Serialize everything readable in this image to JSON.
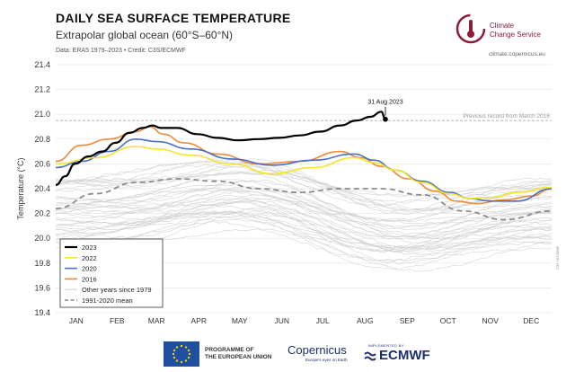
{
  "header": {
    "title": "DAILY SEA SURFACE TEMPERATURE",
    "subtitle": "Extrapolar global ocean (60°S–60°N)",
    "source": "Data: ERA5 1979–2023 • Credit: C3S/ECMWF"
  },
  "brand": {
    "name_line1": "Climate",
    "name_line2": "Change Service",
    "url": "climate.copernicus.eu",
    "color": "#8b1c3a"
  },
  "footer": {
    "eu_line1": "PROGRAMME OF",
    "eu_line2": "THE EUROPEAN UNION",
    "copernicus": "Copernicus",
    "copernicus_tagline": "Europe's eyes on Earth",
    "ecmwf_small": "IMPLEMENTED BY",
    "ecmwf": "ECMWF"
  },
  "side_credit": "C3S / ECMWF",
  "chart_data": {
    "type": "line",
    "ylabel": "Temperature (°C)",
    "xlabel": "",
    "ylim": [
      19.4,
      21.4
    ],
    "yticks": [
      19.4,
      19.6,
      19.8,
      20.0,
      20.2,
      20.4,
      20.6,
      20.8,
      21.0,
      21.2,
      21.4
    ],
    "months": [
      "JAN",
      "FEB",
      "MAR",
      "APR",
      "MAY",
      "JUN",
      "JUL",
      "AUG",
      "SEP",
      "OCT",
      "NOV",
      "DEC"
    ],
    "grid": true,
    "legend": "bottom-left",
    "reference": {
      "value": 20.95,
      "label": "Previous record from March 2016"
    },
    "annotation": {
      "text": "31 Aug 2023",
      "x": 243,
      "y": 20.96
    },
    "colors": {
      "2023": "#000000",
      "2022": "#f5e52b",
      "2020": "#4a6fc8",
      "2016": "#ef8a3a",
      "other": "#cfcfcf",
      "mean": "#8c8c8c"
    },
    "series": [
      {
        "name": "2023",
        "x": [
          1,
          8,
          15,
          25,
          35,
          45,
          55,
          65,
          72,
          78,
          90,
          105,
          120,
          135,
          150,
          165,
          180,
          195,
          210,
          222,
          232,
          240,
          243
        ],
        "values": [
          20.43,
          20.5,
          20.6,
          20.66,
          20.7,
          20.77,
          20.85,
          20.89,
          20.91,
          20.89,
          20.89,
          20.84,
          20.81,
          20.79,
          20.8,
          20.81,
          20.83,
          20.86,
          20.91,
          20.95,
          20.98,
          21.02,
          20.96
        ]
      },
      {
        "name": "2022",
        "x": [
          1,
          30,
          60,
          75,
          100,
          130,
          160,
          190,
          220,
          235,
          250,
          270,
          290,
          305,
          320,
          340,
          365
        ],
        "values": [
          20.6,
          20.65,
          20.74,
          20.72,
          20.67,
          20.6,
          20.52,
          20.57,
          20.65,
          20.61,
          20.55,
          20.45,
          20.36,
          20.32,
          20.33,
          20.37,
          20.41
        ]
      },
      {
        "name": "2020",
        "x": [
          1,
          20,
          40,
          60,
          75,
          100,
          130,
          160,
          190,
          220,
          235,
          250,
          270,
          290,
          305,
          320,
          340,
          365
        ],
        "values": [
          20.57,
          20.62,
          20.7,
          20.8,
          20.78,
          20.72,
          20.64,
          20.59,
          20.63,
          20.68,
          20.63,
          20.55,
          20.46,
          20.37,
          20.32,
          20.3,
          20.3,
          20.4
        ]
      },
      {
        "name": "2016",
        "x": [
          1,
          20,
          40,
          60,
          70,
          80,
          95,
          120,
          150,
          180,
          210,
          225,
          240,
          260,
          280,
          295,
          310,
          330,
          350,
          365
        ],
        "values": [
          20.62,
          20.75,
          20.8,
          20.86,
          20.9,
          20.84,
          20.77,
          20.68,
          20.6,
          20.62,
          20.7,
          20.65,
          20.58,
          20.48,
          20.38,
          20.3,
          20.28,
          20.31,
          20.34,
          20.4
        ]
      },
      {
        "name": "Other years since 1979",
        "x": [],
        "values": []
      },
      {
        "name": "1991-2020 mean",
        "x": [
          1,
          30,
          60,
          90,
          120,
          150,
          180,
          210,
          240,
          270,
          300,
          330,
          365
        ],
        "values": [
          20.24,
          20.36,
          20.45,
          20.48,
          20.46,
          20.4,
          20.37,
          20.4,
          20.4,
          20.35,
          20.22,
          20.15,
          20.22
        ]
      }
    ]
  }
}
